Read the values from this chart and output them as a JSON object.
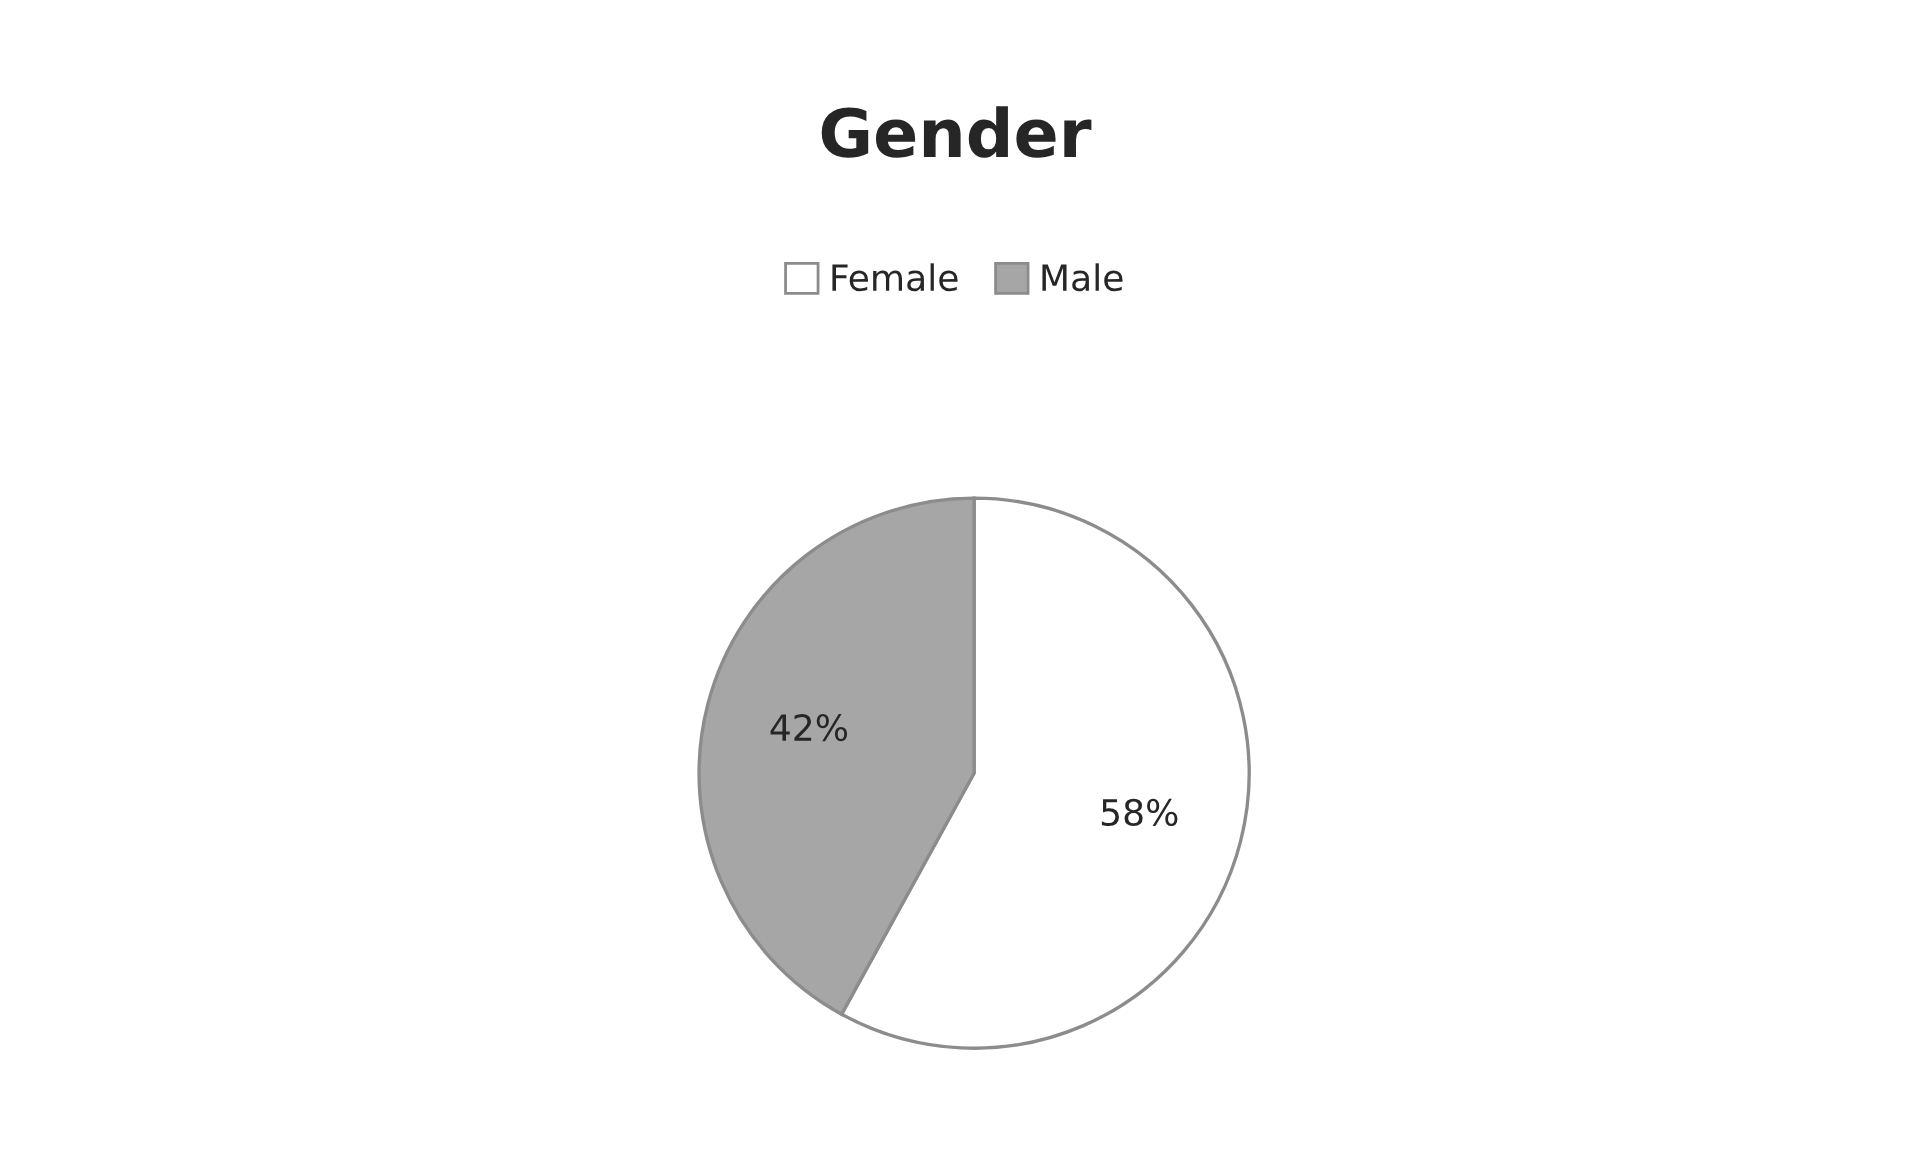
{
  "chart_data": {
    "type": "pie",
    "title": "Gender",
    "categories": [
      "Female",
      "Male"
    ],
    "values": [
      58,
      42
    ],
    "colors": [
      "#ffffff",
      "#a6a6a6"
    ],
    "value_labels": [
      "58%",
      "42%"
    ],
    "legend": "top"
  }
}
